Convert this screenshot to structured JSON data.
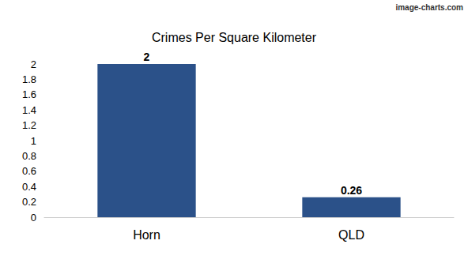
{
  "chart_data": {
    "type": "bar",
    "title": "Crimes Per Square Kilometer",
    "annotations": [
      "image-charts.com"
    ],
    "categories": [
      "Horn",
      "QLD"
    ],
    "values": [
      2,
      0.26
    ],
    "color": "#2b5189",
    "ylim": [
      0,
      2
    ],
    "yticks": [
      0,
      0.2,
      0.4,
      0.6,
      0.8,
      1,
      1.2,
      1.4,
      1.6,
      1.8,
      2
    ],
    "grid": false,
    "data_labels": true
  }
}
